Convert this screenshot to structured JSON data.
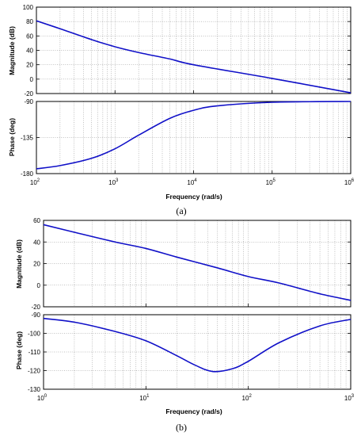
{
  "colors": {
    "curve": "#1010c8",
    "background": "#ffffff",
    "axes": "#000000"
  },
  "figure": {
    "caption_a": "(a)",
    "caption_b": "(b)",
    "xlabel_a": "Frequency (rad/s)",
    "xlabel_b": "Frequency (rad/s)",
    "mag_ylabel_a": "Magnitude (dB)",
    "phase_ylabel_a": "Phase (deg)",
    "mag_ylabel_b": "Magnitude (dB)",
    "phase_ylabel_b": "Phase (deg)"
  },
  "chart_data": [
    {
      "id": "a-magnitude",
      "type": "line",
      "xscale": "log",
      "xlim": [
        100,
        1000000
      ],
      "ylim": [
        -20,
        100
      ],
      "ylabel": "Magnitude (dB)",
      "yticks": [
        -20,
        0,
        20,
        40,
        60,
        80,
        100
      ],
      "grid": true,
      "series": [
        {
          "x": [
            100,
            200,
            500,
            1000,
            2000,
            5000,
            10000,
            100000,
            1000000
          ],
          "y": [
            81,
            70,
            55,
            45,
            37,
            28,
            20,
            1,
            -19
          ]
        }
      ]
    },
    {
      "id": "a-phase",
      "type": "line",
      "xscale": "log",
      "xlim": [
        100,
        1000000
      ],
      "ylim": [
        -180,
        -90
      ],
      "xlabel": "Frequency (rad/s)",
      "ylabel": "Phase (deg)",
      "yticks": [
        -180,
        -135,
        -90
      ],
      "xticks": [
        {
          "value": 100,
          "base": "10",
          "exp": "2"
        },
        {
          "value": 1000,
          "base": "10",
          "exp": "3"
        },
        {
          "value": 10000,
          "base": "10",
          "exp": "4"
        },
        {
          "value": 100000,
          "base": "10",
          "exp": "5"
        },
        {
          "value": 1000000,
          "base": "10",
          "exp": "6"
        }
      ],
      "grid": true,
      "series": [
        {
          "x": [
            100,
            200,
            500,
            1000,
            2000,
            5000,
            10000,
            20000,
            100000,
            1000000
          ],
          "y": [
            -174,
            -170,
            -161,
            -149,
            -132,
            -111,
            -101,
            -95.5,
            -91,
            -90
          ]
        }
      ]
    },
    {
      "id": "b-magnitude",
      "type": "line",
      "xscale": "log",
      "xlim": [
        1,
        1000
      ],
      "ylim": [
        -20,
        60
      ],
      "ylabel": "Magnitude (dB)",
      "yticks": [
        -20,
        0,
        20,
        40,
        60
      ],
      "grid": true,
      "series": [
        {
          "x": [
            1,
            2,
            5,
            10,
            20,
            50,
            100,
            200,
            500,
            1000
          ],
          "y": [
            56,
            49,
            40,
            34,
            26,
            16,
            8,
            2,
            -8,
            -14
          ]
        }
      ]
    },
    {
      "id": "b-phase",
      "type": "line",
      "xscale": "log",
      "xlim": [
        1,
        1000
      ],
      "ylim": [
        -130,
        -90
      ],
      "xlabel": "Frequency (rad/s)",
      "ylabel": "Phase (deg)",
      "yticks": [
        -130,
        -120,
        -110,
        -100,
        -90
      ],
      "xticks": [
        {
          "value": 1,
          "base": "10",
          "exp": "0"
        },
        {
          "value": 10,
          "base": "10",
          "exp": "1"
        },
        {
          "value": 100,
          "base": "10",
          "exp": "2"
        },
        {
          "value": 1000,
          "base": "10",
          "exp": "3"
        }
      ],
      "grid": true,
      "series": [
        {
          "x": [
            1,
            2,
            5,
            10,
            20,
            30,
            45,
            70,
            100,
            200,
            500,
            1000
          ],
          "y": [
            -92,
            -94,
            -99,
            -104,
            -112,
            -117,
            -120.5,
            -119,
            -115,
            -105,
            -96,
            -92.5
          ]
        }
      ]
    }
  ]
}
